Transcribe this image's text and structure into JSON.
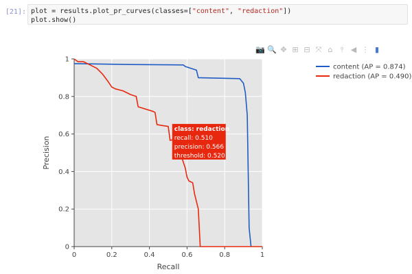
{
  "cell": {
    "prompt": "[21]:",
    "code_line_1_prefix": "plot = results.plot_pr_curves(classes=[",
    "code_line_1_str1": "\"content\"",
    "code_line_1_sep": ", ",
    "code_line_1_str2": "\"redaction\"",
    "code_line_1_suffix": "])",
    "code_line_2": "plot.show()"
  },
  "modebar": {
    "buttons": [
      {
        "icon": "camera-icon",
        "glyph": "📷",
        "active": false
      },
      {
        "icon": "zoom-icon",
        "glyph": "🔍",
        "active": true
      },
      {
        "icon": "pan-icon",
        "glyph": "✥",
        "active": false
      },
      {
        "icon": "zoom-in-icon",
        "glyph": "⊞",
        "active": false
      },
      {
        "icon": "zoom-out-icon",
        "glyph": "⊟",
        "active": false
      },
      {
        "icon": "autoscale-icon",
        "glyph": "⤧",
        "active": false
      },
      {
        "icon": "reset-axes-icon",
        "glyph": "⌂",
        "active": false
      },
      {
        "icon": "spike-lines-icon",
        "glyph": "⫯",
        "active": false
      },
      {
        "icon": "hover-closest-icon",
        "glyph": "◀",
        "active": false
      },
      {
        "icon": "hover-compare-icon",
        "glyph": "⋮",
        "active": false
      },
      {
        "icon": "plotly-logo-icon",
        "glyph": "▮",
        "active": false
      }
    ]
  },
  "tooltip": {
    "line1": "class: redaction",
    "line2": "recall: 0.510",
    "line3": "precision: 0.566",
    "line4": "threshold: 0.520",
    "color": "#e8280e"
  },
  "chart_data": {
    "type": "line",
    "title": "",
    "xlabel": "Recall",
    "ylabel": "Precision",
    "xlim": [
      0,
      1
    ],
    "ylim": [
      0,
      1
    ],
    "x_ticks": [
      "0",
      "0.2",
      "0.4",
      "0.6",
      "0.8",
      "1"
    ],
    "y_ticks": [
      "0",
      "0.2",
      "0.4",
      "0.6",
      "0.8",
      "1"
    ],
    "grid": true,
    "plot_bg": "#e5e5e5",
    "legend_position": "top-right",
    "series": [
      {
        "name": "content (AP = 0.874)",
        "color": "#1f5bc4",
        "x": [
          0,
          0.3,
          0.58,
          0.59,
          0.65,
          0.66,
          0.88,
          0.9,
          0.91,
          0.92,
          0.93,
          0.935,
          0.94
        ],
        "y": [
          0.975,
          0.97,
          0.968,
          0.96,
          0.94,
          0.9,
          0.895,
          0.87,
          0.82,
          0.7,
          0.1,
          0.05,
          0
        ]
      },
      {
        "name": "redaction (AP = 0.490)",
        "color": "#e8280e",
        "x": [
          0,
          0.02,
          0.05,
          0.08,
          0.12,
          0.15,
          0.18,
          0.2,
          0.22,
          0.26,
          0.3,
          0.33,
          0.34,
          0.42,
          0.43,
          0.44,
          0.47,
          0.5,
          0.51,
          0.53,
          0.55,
          0.57,
          0.59,
          0.6,
          0.61,
          0.63,
          0.64,
          0.66,
          0.67,
          0.68,
          1.0
        ],
        "y": [
          1.0,
          0.985,
          0.985,
          0.97,
          0.95,
          0.92,
          0.88,
          0.85,
          0.84,
          0.83,
          0.81,
          0.8,
          0.745,
          0.72,
          0.715,
          0.65,
          0.645,
          0.64,
          0.566,
          0.57,
          0.5,
          0.48,
          0.42,
          0.37,
          0.35,
          0.34,
          0.28,
          0.2,
          0.0,
          0.0,
          0.0
        ]
      }
    ]
  }
}
